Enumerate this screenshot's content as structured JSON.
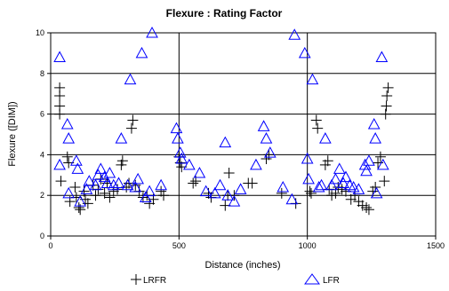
{
  "chart_data": {
    "type": "scatter",
    "title": "Flexure : Rating Factor",
    "xlabel": "Distance (inches)",
    "ylabel": "Flexure ([DIM])",
    "xlim": [
      0,
      1500
    ],
    "ylim": [
      0,
      10
    ],
    "xticks": [
      0,
      500,
      1000,
      1500
    ],
    "yticks": [
      0,
      2,
      4,
      6,
      8,
      10
    ],
    "grid": true,
    "legend_position": "bottom-center",
    "series": [
      {
        "name": "LRFR",
        "marker": "plus",
        "color": "#000000",
        "points": [
          [
            35,
            7.3
          ],
          [
            35,
            6.9
          ],
          [
            35,
            6.4
          ],
          [
            35,
            6.0
          ],
          [
            40,
            2.7
          ],
          [
            65,
            3.9
          ],
          [
            70,
            3.6
          ],
          [
            75,
            1.7
          ],
          [
            95,
            2.4
          ],
          [
            100,
            1.9
          ],
          [
            110,
            1.4
          ],
          [
            115,
            1.3
          ],
          [
            130,
            2.2
          ],
          [
            135,
            1.8
          ],
          [
            145,
            1.6
          ],
          [
            165,
            2.5
          ],
          [
            175,
            2.0
          ],
          [
            185,
            2.3
          ],
          [
            195,
            2.8
          ],
          [
            210,
            2.1
          ],
          [
            220,
            2.6
          ],
          [
            230,
            1.9
          ],
          [
            245,
            2.2
          ],
          [
            260,
            2.3
          ],
          [
            275,
            3.5
          ],
          [
            280,
            3.7
          ],
          [
            295,
            2.4
          ],
          [
            305,
            2.6
          ],
          [
            315,
            5.3
          ],
          [
            320,
            5.7
          ],
          [
            330,
            2.5
          ],
          [
            345,
            2.2
          ],
          [
            360,
            1.9
          ],
          [
            375,
            2.0
          ],
          [
            385,
            1.6
          ],
          [
            400,
            1.8
          ],
          [
            430,
            2.2
          ],
          [
            440,
            2.0
          ],
          [
            500,
            3.9
          ],
          [
            505,
            3.6
          ],
          [
            510,
            3.4
          ],
          [
            555,
            2.6
          ],
          [
            565,
            2.7
          ],
          [
            615,
            2.1
          ],
          [
            625,
            1.9
          ],
          [
            680,
            1.5
          ],
          [
            690,
            2.0
          ],
          [
            695,
            3.1
          ],
          [
            715,
            2.0
          ],
          [
            770,
            2.6
          ],
          [
            785,
            2.6
          ],
          [
            840,
            3.8
          ],
          [
            850,
            4.0
          ],
          [
            900,
            2.1
          ],
          [
            955,
            1.6
          ],
          [
            1010,
            2.2
          ],
          [
            1015,
            2.1
          ],
          [
            1035,
            5.7
          ],
          [
            1040,
            5.3
          ],
          [
            1070,
            3.5
          ],
          [
            1080,
            3.7
          ],
          [
            1085,
            2.3
          ],
          [
            1095,
            2.0
          ],
          [
            1110,
            2.1
          ],
          [
            1120,
            2.4
          ],
          [
            1135,
            2.3
          ],
          [
            1150,
            2.2
          ],
          [
            1170,
            1.8
          ],
          [
            1185,
            2.0
          ],
          [
            1200,
            1.7
          ],
          [
            1215,
            1.5
          ],
          [
            1230,
            1.4
          ],
          [
            1240,
            1.3
          ],
          [
            1255,
            2.2
          ],
          [
            1265,
            2.4
          ],
          [
            1275,
            3.6
          ],
          [
            1285,
            3.9
          ],
          [
            1300,
            2.7
          ],
          [
            1305,
            6.0
          ],
          [
            1308,
            6.4
          ],
          [
            1310,
            6.9
          ],
          [
            1315,
            7.3
          ]
        ]
      },
      {
        "name": "LFR",
        "marker": "triangle",
        "color": "#0000ff",
        "points": [
          [
            35,
            8.8
          ],
          [
            35,
            3.5
          ],
          [
            65,
            5.5
          ],
          [
            70,
            4.8
          ],
          [
            70,
            2.1
          ],
          [
            100,
            3.7
          ],
          [
            105,
            3.3
          ],
          [
            115,
            1.7
          ],
          [
            140,
            2.3
          ],
          [
            150,
            2.7
          ],
          [
            175,
            2.5
          ],
          [
            185,
            3.0
          ],
          [
            195,
            3.3
          ],
          [
            210,
            2.9
          ],
          [
            220,
            2.6
          ],
          [
            230,
            3.1
          ],
          [
            245,
            2.5
          ],
          [
            265,
            2.6
          ],
          [
            275,
            4.8
          ],
          [
            300,
            2.5
          ],
          [
            310,
            7.7
          ],
          [
            330,
            2.4
          ],
          [
            340,
            2.8
          ],
          [
            355,
            9.0
          ],
          [
            370,
            1.9
          ],
          [
            385,
            2.2
          ],
          [
            395,
            10.0
          ],
          [
            430,
            2.5
          ],
          [
            490,
            5.3
          ],
          [
            495,
            4.8
          ],
          [
            505,
            4.1
          ],
          [
            510,
            3.8
          ],
          [
            540,
            3.5
          ],
          [
            580,
            3.1
          ],
          [
            605,
            2.2
          ],
          [
            640,
            2.1
          ],
          [
            660,
            2.5
          ],
          [
            680,
            4.6
          ],
          [
            690,
            2.0
          ],
          [
            715,
            1.7
          ],
          [
            740,
            2.3
          ],
          [
            800,
            3.5
          ],
          [
            830,
            5.4
          ],
          [
            840,
            4.8
          ],
          [
            855,
            4.1
          ],
          [
            905,
            2.4
          ],
          [
            940,
            1.8
          ],
          [
            950,
            9.9
          ],
          [
            990,
            9.0
          ],
          [
            1000,
            3.8
          ],
          [
            1005,
            2.8
          ],
          [
            1020,
            7.7
          ],
          [
            1045,
            2.4
          ],
          [
            1055,
            2.5
          ],
          [
            1070,
            4.8
          ],
          [
            1095,
            2.5
          ],
          [
            1110,
            2.8
          ],
          [
            1125,
            3.3
          ],
          [
            1140,
            2.6
          ],
          [
            1150,
            2.9
          ],
          [
            1165,
            2.5
          ],
          [
            1180,
            2.4
          ],
          [
            1200,
            2.3
          ],
          [
            1225,
            3.5
          ],
          [
            1230,
            3.2
          ],
          [
            1240,
            3.7
          ],
          [
            1260,
            5.5
          ],
          [
            1265,
            4.8
          ],
          [
            1270,
            2.1
          ],
          [
            1290,
            8.8
          ],
          [
            1295,
            3.5
          ]
        ]
      }
    ]
  }
}
